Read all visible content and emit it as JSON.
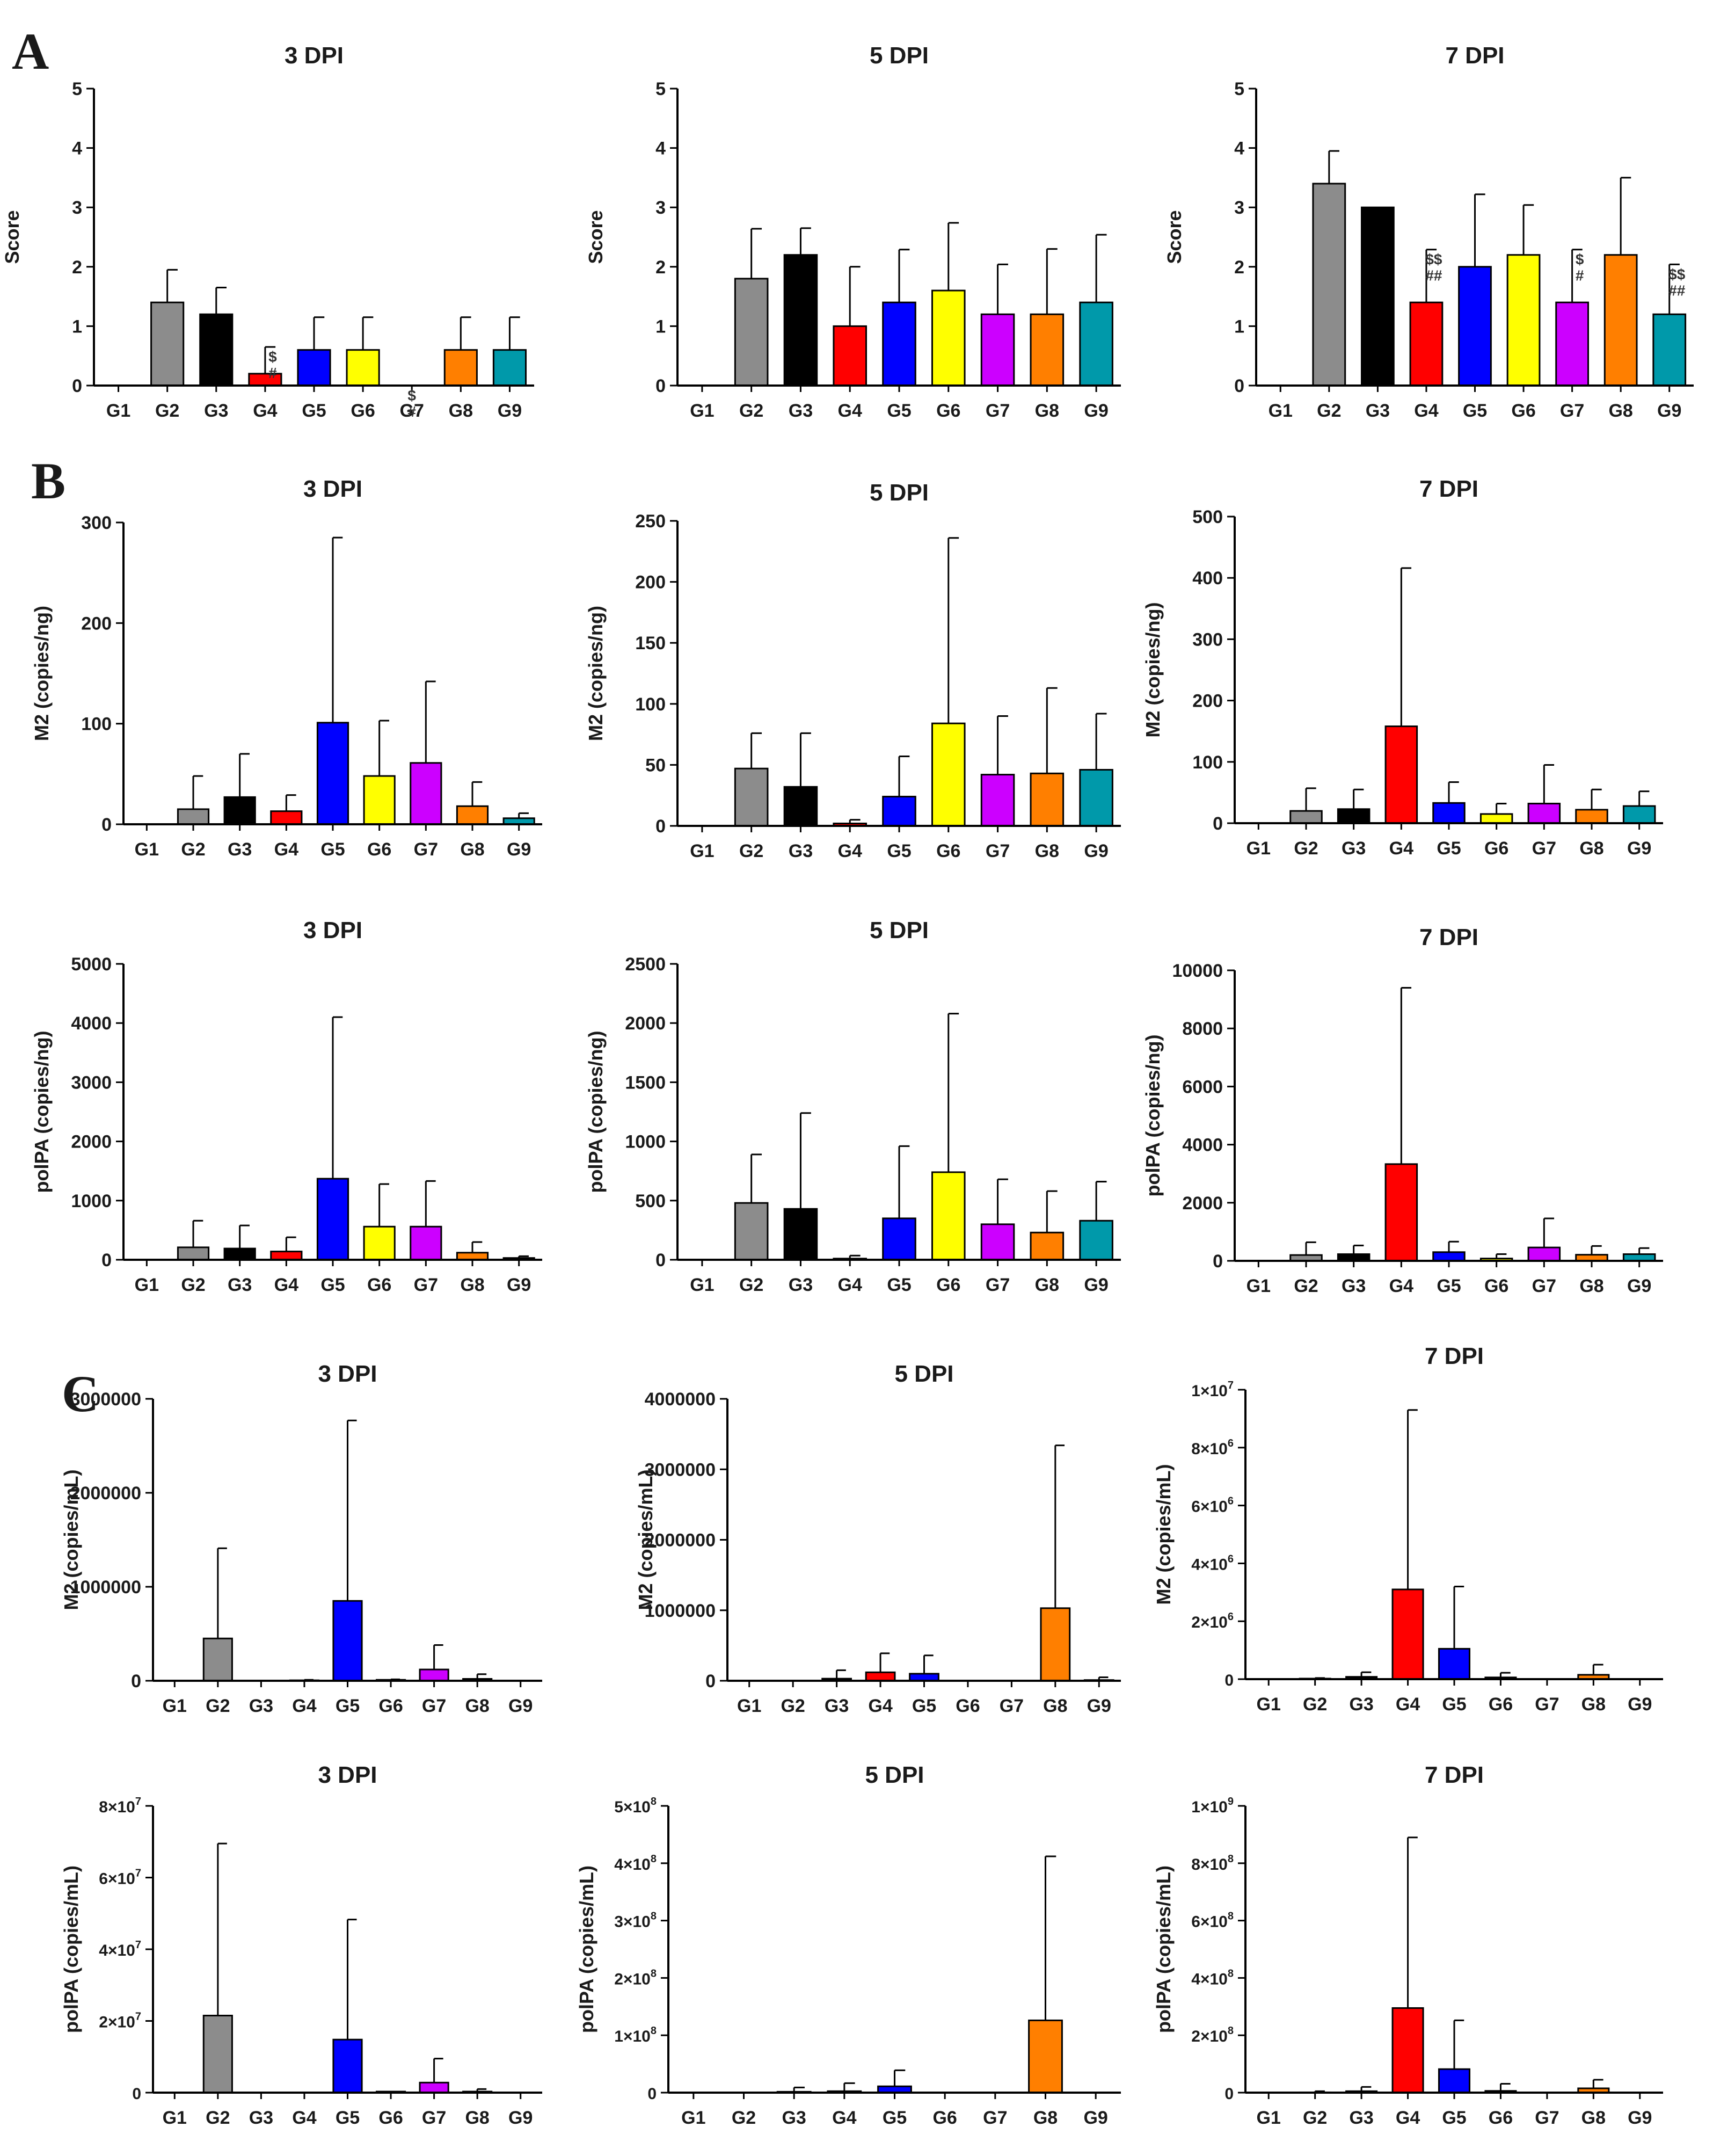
{
  "figure": {
    "panel_labels": [
      "A",
      "B",
      "C"
    ],
    "group_colors": {
      "G1": "#ffffff",
      "G2": "#8c8c8c",
      "G3": "#000000",
      "G4": "#ff0000",
      "G5": "#0000ff",
      "G6": "#ffff00",
      "G7": "#cc00ff",
      "G8": "#ff7f00",
      "G9": "#0099aa"
    }
  },
  "chart_data": [
    {
      "type": "bar",
      "panel": "A",
      "title": "3 DPI",
      "ylabel": "Score",
      "categories": [
        "G1",
        "G2",
        "G3",
        "G4",
        "G5",
        "G6",
        "G7",
        "G8",
        "G9"
      ],
      "values": [
        0,
        1.4,
        1.2,
        0.2,
        0.6,
        0.6,
        0,
        0.6,
        0.6
      ],
      "errors": [
        0,
        0.55,
        0.45,
        0.45,
        0.55,
        0.55,
        0,
        0.55,
        0.55
      ],
      "ylim": [
        0,
        5
      ],
      "yticks": [
        "0",
        "1",
        "2",
        "3",
        "4",
        "5"
      ],
      "annotations": [
        {
          "category": "G4",
          "lines": [
            "$",
            "#"
          ]
        },
        {
          "category": "G7",
          "lines": [
            "$",
            "#"
          ]
        }
      ]
    },
    {
      "type": "bar",
      "panel": "A",
      "title": "5 DPI",
      "ylabel": "Score",
      "categories": [
        "G1",
        "G2",
        "G3",
        "G4",
        "G5",
        "G6",
        "G7",
        "G8",
        "G9"
      ],
      "values": [
        0,
        1.8,
        2.2,
        1.0,
        1.4,
        1.6,
        1.2,
        1.2,
        1.4
      ],
      "errors": [
        0,
        0.84,
        0.45,
        1.0,
        0.89,
        1.14,
        0.84,
        1.1,
        1.14
      ],
      "ylim": [
        0,
        5
      ],
      "yticks": [
        "0",
        "1",
        "2",
        "3",
        "4",
        "5"
      ],
      "annotations": []
    },
    {
      "type": "bar",
      "panel": "A",
      "title": "7 DPI",
      "ylabel": "Score",
      "categories": [
        "G1",
        "G2",
        "G3",
        "G4",
        "G5",
        "G6",
        "G7",
        "G8",
        "G9"
      ],
      "values": [
        0,
        3.4,
        3.0,
        1.4,
        2.0,
        2.2,
        1.4,
        2.2,
        1.2
      ],
      "errors": [
        0,
        0.55,
        0,
        0.89,
        1.22,
        0.84,
        0.89,
        1.3,
        0.84
      ],
      "ylim": [
        0,
        5
      ],
      "yticks": [
        "0",
        "1",
        "2",
        "3",
        "4",
        "5"
      ],
      "annotations": [
        {
          "category": "G4",
          "lines": [
            "$$",
            "##"
          ]
        },
        {
          "category": "G7",
          "lines": [
            "$",
            "#"
          ]
        },
        {
          "category": "G9",
          "lines": [
            "$$",
            "##"
          ]
        }
      ]
    },
    {
      "type": "bar",
      "panel": "B",
      "title": "3 DPI",
      "ylabel": "M2 (copies/ng)",
      "categories": [
        "G1",
        "G2",
        "G3",
        "G4",
        "G5",
        "G6",
        "G7",
        "G8",
        "G9"
      ],
      "values": [
        0,
        15,
        27,
        13,
        101,
        48,
        61,
        18,
        6
      ],
      "errors": [
        0,
        33,
        43,
        16,
        184,
        55,
        81,
        24,
        5
      ],
      "ylim": [
        0,
        300
      ],
      "yticks": [
        "0",
        "100",
        "200",
        "300"
      ],
      "annotations": []
    },
    {
      "type": "bar",
      "panel": "B",
      "title": "5 DPI",
      "ylabel": "M2 (copies/ng)",
      "categories": [
        "G1",
        "G2",
        "G3",
        "G4",
        "G5",
        "G6",
        "G7",
        "G8",
        "G9"
      ],
      "values": [
        0,
        47,
        32,
        2,
        24,
        84,
        42,
        43,
        46
      ],
      "errors": [
        0,
        29,
        44,
        3,
        33,
        152,
        48,
        70,
        46
      ],
      "ylim": [
        0,
        250
      ],
      "yticks": [
        "0",
        "50",
        "100",
        "150",
        "200",
        "250"
      ],
      "annotations": []
    },
    {
      "type": "bar",
      "panel": "B",
      "title": "7 DPI",
      "ylabel": "M2 (copies/ng)",
      "categories": [
        "G1",
        "G2",
        "G3",
        "G4",
        "G5",
        "G6",
        "G7",
        "G8",
        "G9"
      ],
      "values": [
        0,
        20,
        23,
        158,
        33,
        15,
        32,
        22,
        28
      ],
      "errors": [
        0,
        37,
        32,
        258,
        34,
        17,
        63,
        33,
        24
      ],
      "ylim": [
        0,
        500
      ],
      "yticks": [
        "0",
        "100",
        "200",
        "300",
        "400",
        "500"
      ],
      "annotations": []
    },
    {
      "type": "bar",
      "panel": "B",
      "title": "3 DPI",
      "ylabel": "polPA (copies/ng)",
      "categories": [
        "G1",
        "G2",
        "G3",
        "G4",
        "G5",
        "G6",
        "G7",
        "G8",
        "G9"
      ],
      "values": [
        0,
        210,
        190,
        140,
        1370,
        560,
        560,
        120,
        30
      ],
      "errors": [
        0,
        450,
        390,
        240,
        2730,
        720,
        770,
        180,
        30
      ],
      "ylim": [
        0,
        5000
      ],
      "yticks": [
        "0",
        "1000",
        "2000",
        "3000",
        "4000",
        "5000"
      ],
      "annotations": []
    },
    {
      "type": "bar",
      "panel": "B",
      "title": "5 DPI",
      "ylabel": "polPA (copies/ng)",
      "categories": [
        "G1",
        "G2",
        "G3",
        "G4",
        "G5",
        "G6",
        "G7",
        "G8",
        "G9"
      ],
      "values": [
        0,
        480,
        430,
        10,
        350,
        740,
        300,
        230,
        330
      ],
      "errors": [
        0,
        410,
        810,
        25,
        610,
        1340,
        380,
        350,
        330
      ],
      "ylim": [
        0,
        2500
      ],
      "yticks": [
        "0",
        "500",
        "1000",
        "1500",
        "2000",
        "2500"
      ],
      "annotations": []
    },
    {
      "type": "bar",
      "panel": "B",
      "title": "7 DPI",
      "ylabel": "polPA (copies/ng)",
      "categories": [
        "G1",
        "G2",
        "G3",
        "G4",
        "G5",
        "G6",
        "G7",
        "G8",
        "G9"
      ],
      "values": [
        0,
        200,
        230,
        3330,
        300,
        80,
        460,
        210,
        230
      ],
      "errors": [
        0,
        440,
        300,
        6070,
        360,
        150,
        1000,
        300,
        210
      ],
      "ylim": [
        0,
        10000
      ],
      "yticks": [
        "0",
        "2000",
        "4000",
        "6000",
        "8000",
        "10000"
      ],
      "annotations": []
    },
    {
      "type": "bar",
      "panel": "C",
      "title": "3 DPI",
      "ylabel": "M2 (copies/mL)",
      "categories": [
        "G1",
        "G2",
        "G3",
        "G4",
        "G5",
        "G6",
        "G7",
        "G8",
        "G9"
      ],
      "values": [
        0,
        450000,
        0,
        5000,
        850000,
        10000,
        120000,
        20000,
        0
      ],
      "errors": [
        0,
        960000,
        0,
        5000,
        1920000,
        5000,
        260000,
        50000,
        0
      ],
      "ylim": [
        0,
        3000000
      ],
      "yticks": [
        "0",
        "1000000",
        "2000000",
        "3000000"
      ],
      "annotations": []
    },
    {
      "type": "bar",
      "panel": "C",
      "title": "5 DPI",
      "ylabel": "M2 (copies/mL)",
      "categories": [
        "G1",
        "G2",
        "G3",
        "G4",
        "G5",
        "G6",
        "G7",
        "G8",
        "G9"
      ],
      "values": [
        0,
        0,
        30000,
        120000,
        100000,
        0,
        0,
        1030000,
        10000
      ],
      "errors": [
        0,
        0,
        120000,
        270000,
        260000,
        0,
        0,
        2310000,
        40000
      ],
      "ylim": [
        0,
        4000000
      ],
      "yticks": [
        "0",
        "1000000",
        "2000000",
        "3000000",
        "4000000"
      ],
      "annotations": []
    },
    {
      "type": "bar",
      "panel": "C",
      "title": "7 DPI",
      "ylabel": "M2 (copies/mL)",
      "categories": [
        "G1",
        "G2",
        "G3",
        "G4",
        "G5",
        "G6",
        "G7",
        "G8",
        "G9"
      ],
      "values": [
        0,
        20000,
        80000,
        3100000,
        1050000,
        60000,
        0,
        150000,
        0
      ],
      "errors": [
        0,
        20000,
        160000,
        6200000,
        2150000,
        160000,
        0,
        350000,
        0
      ],
      "ylim": [
        0,
        10000000
      ],
      "yticks": [
        [
          "0",
          ""
        ],
        [
          "2×10",
          "6"
        ],
        [
          "4×10",
          "6"
        ],
        [
          "6×10",
          "6"
        ],
        [
          "8×10",
          "6"
        ],
        [
          "1×10",
          "7"
        ]
      ],
      "annotations": []
    },
    {
      "type": "bar",
      "panel": "C",
      "title": "3 DPI",
      "ylabel": "polPA (copies/mL)",
      "categories": [
        "G1",
        "G2",
        "G3",
        "G4",
        "G5",
        "G6",
        "G7",
        "G8",
        "G9"
      ],
      "values": [
        0,
        21500000,
        0,
        0,
        14800000,
        300000,
        2800000,
        300000,
        0
      ],
      "errors": [
        0,
        48000000,
        0,
        0,
        33500000,
        0,
        6700000,
        700000,
        0
      ],
      "ylim": [
        0,
        80000000
      ],
      "yticks": [
        [
          "0",
          ""
        ],
        [
          "2×10",
          "7"
        ],
        [
          "4×10",
          "7"
        ],
        [
          "6×10",
          "7"
        ],
        [
          "8×10",
          "7"
        ]
      ],
      "annotations": []
    },
    {
      "type": "bar",
      "panel": "C",
      "title": "5 DPI",
      "ylabel": "polPA (copies/mL)",
      "categories": [
        "G1",
        "G2",
        "G3",
        "G4",
        "G5",
        "G6",
        "G7",
        "G8",
        "G9"
      ],
      "values": [
        0,
        0,
        1500000,
        2500000,
        11000000,
        0,
        0,
        126000000,
        0
      ],
      "errors": [
        0,
        0,
        7500000,
        14000000,
        28000000,
        0,
        0,
        286000000,
        0
      ],
      "ylim": [
        0,
        500000000
      ],
      "yticks": [
        [
          "0",
          ""
        ],
        [
          "1×10",
          "8"
        ],
        [
          "2×10",
          "8"
        ],
        [
          "3×10",
          "8"
        ],
        [
          "4×10",
          "8"
        ],
        [
          "5×10",
          "8"
        ]
      ],
      "annotations": []
    },
    {
      "type": "bar",
      "panel": "C",
      "title": "7 DPI",
      "ylabel": "polPA (copies/mL)",
      "categories": [
        "G1",
        "G2",
        "G3",
        "G4",
        "G5",
        "G6",
        "G7",
        "G8",
        "G9"
      ],
      "values": [
        0,
        1000000,
        5000000,
        295000000,
        82000000,
        6000000,
        0,
        15000000,
        0
      ],
      "errors": [
        0,
        4000000,
        15000000,
        595000000,
        170000000,
        25000000,
        0,
        30000000,
        0
      ],
      "ylim": [
        0,
        1000000000
      ],
      "yticks": [
        [
          "0",
          ""
        ],
        [
          "2×10",
          "8"
        ],
        [
          "4×10",
          "8"
        ],
        [
          "6×10",
          "8"
        ],
        [
          "8×10",
          "8"
        ],
        [
          "1×10",
          "9"
        ]
      ],
      "annotations": []
    }
  ]
}
